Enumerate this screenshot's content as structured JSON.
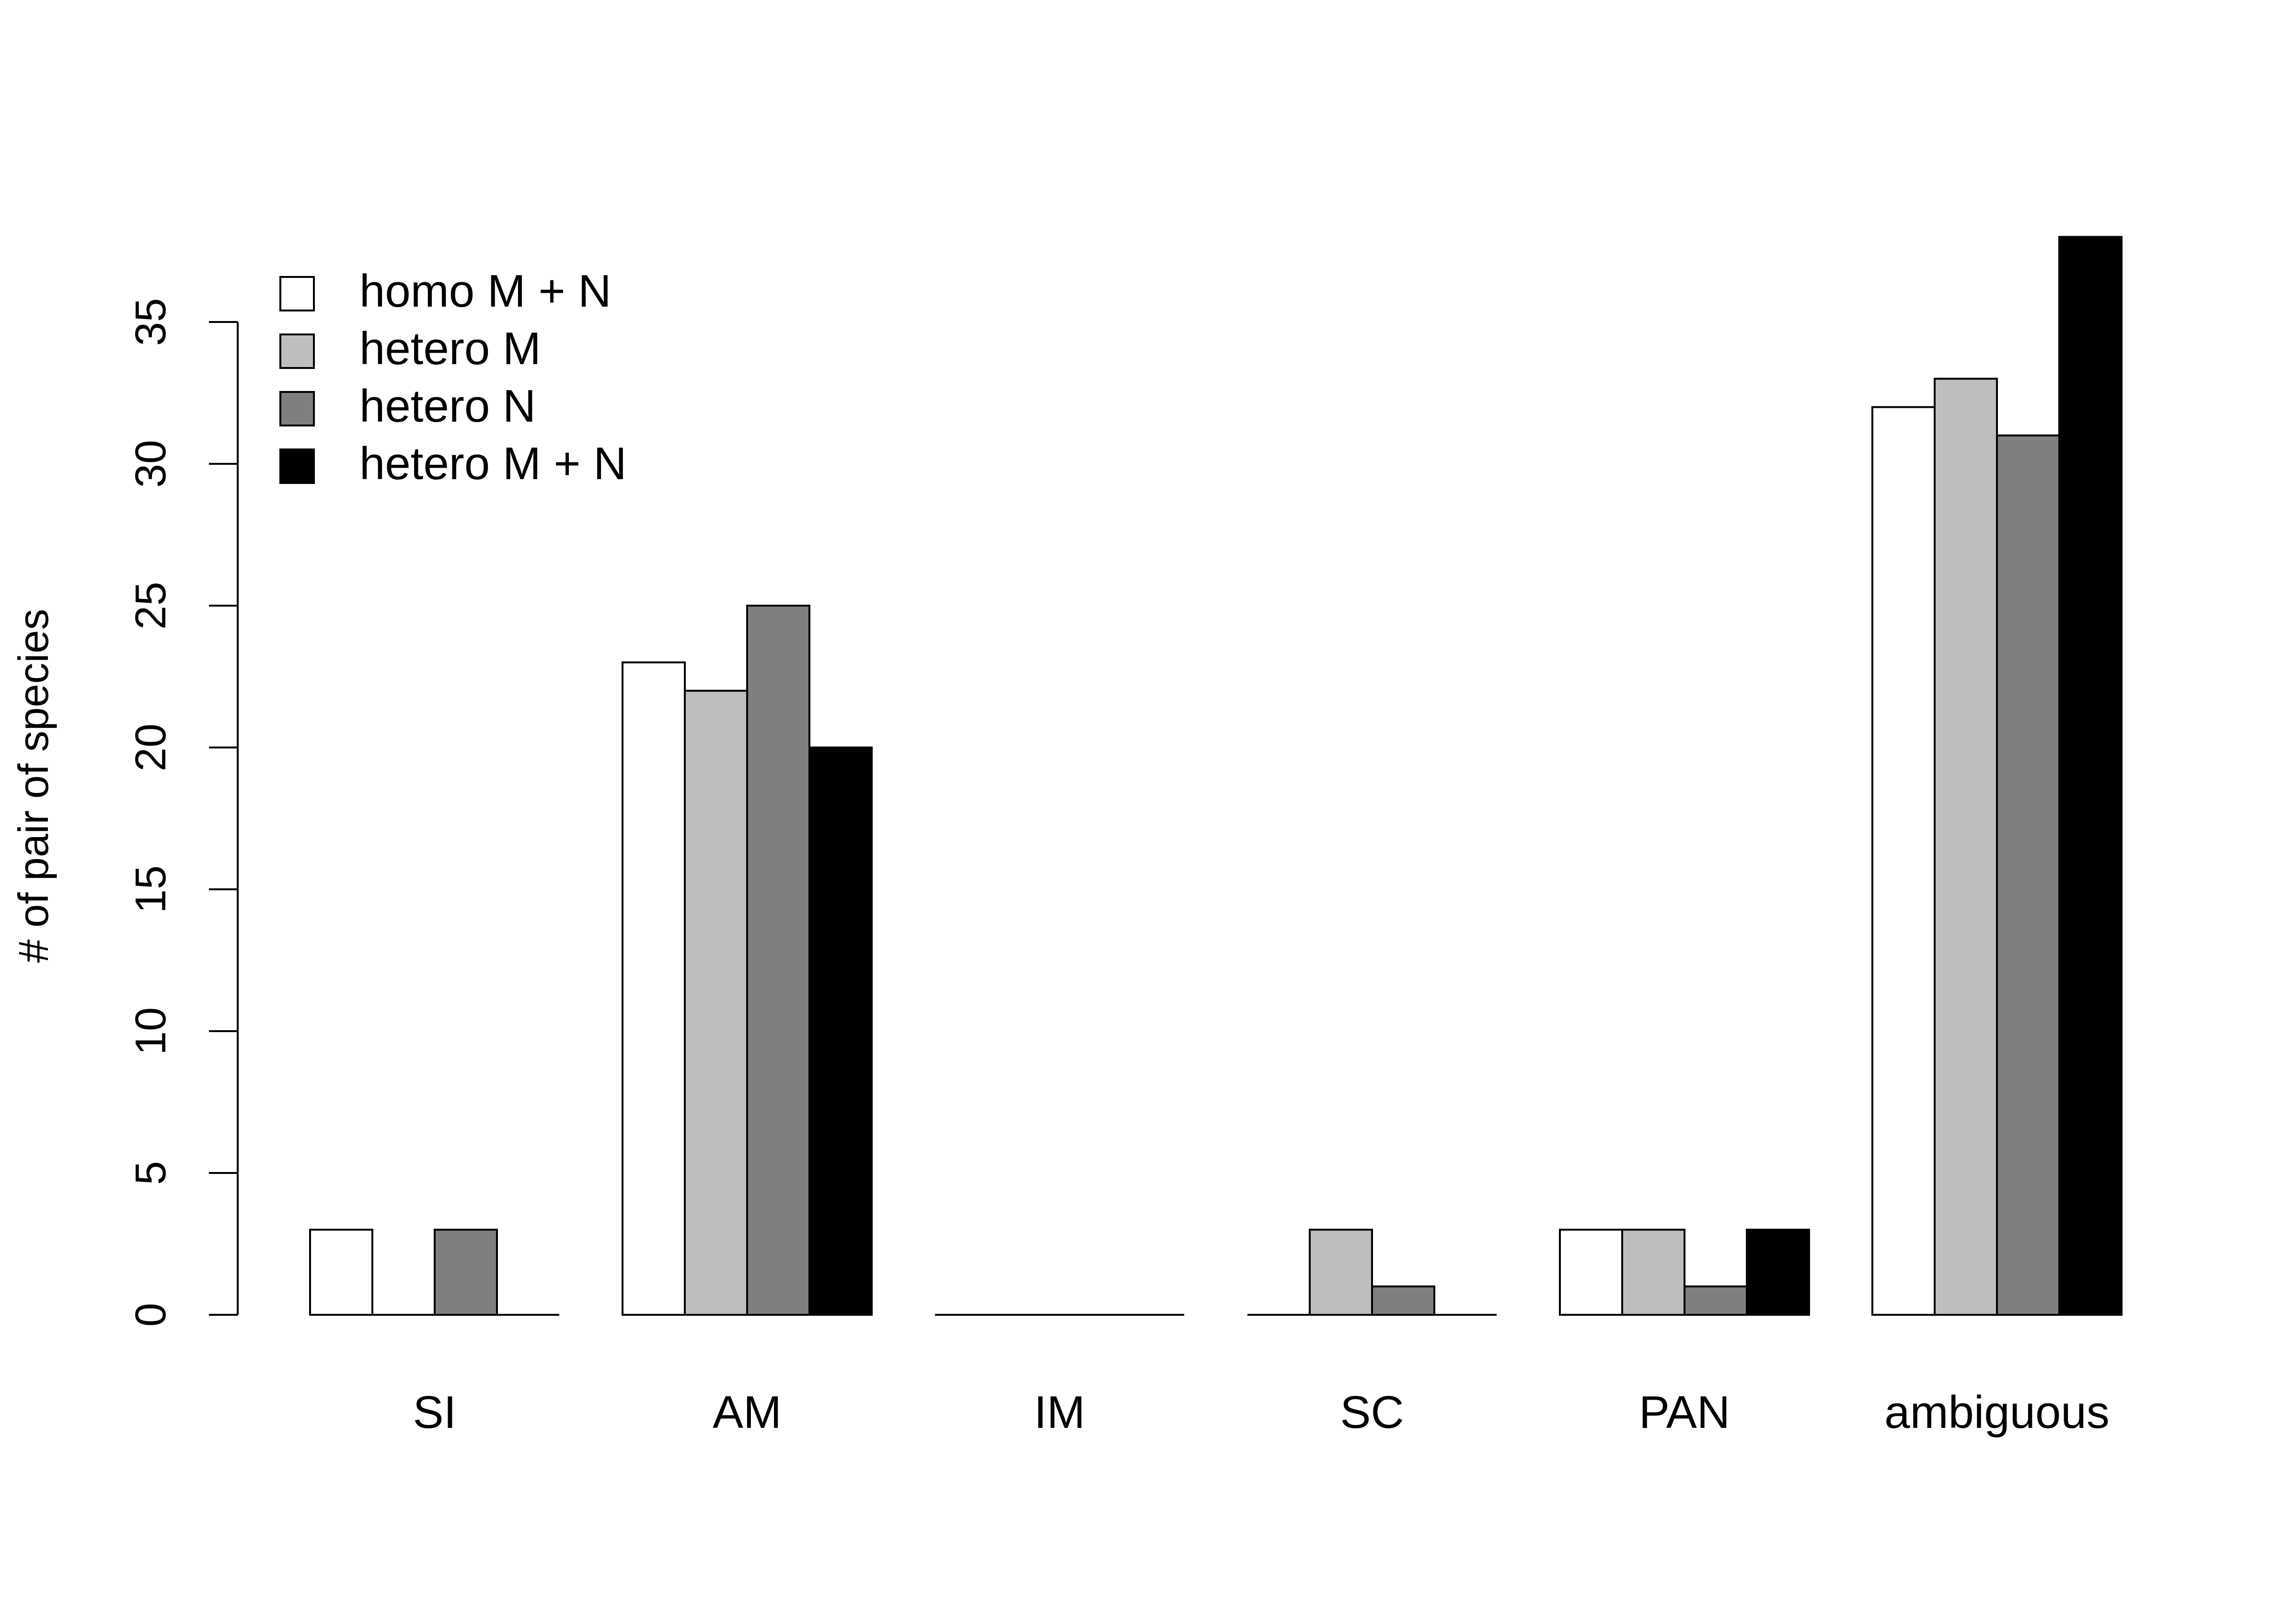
{
  "chart_data": {
    "type": "bar",
    "title": "",
    "xlabel": "",
    "ylabel": "# of pair of species",
    "categories": [
      "SI",
      "AM",
      "IM",
      "SC",
      "PAN",
      "ambiguous"
    ],
    "ylim": [
      0,
      38
    ],
    "yticks": [
      0,
      5,
      10,
      15,
      20,
      25,
      30,
      35
    ],
    "grid": false,
    "legend_position": "top-left",
    "series": [
      {
        "name": "homo M + N",
        "color": "#ffffff",
        "values": [
          3,
          23,
          0,
          0,
          3,
          32
        ]
      },
      {
        "name": "hetero M",
        "color": "#bebebe",
        "values": [
          0,
          22,
          0,
          3,
          3,
          33
        ]
      },
      {
        "name": "hetero N",
        "color": "#7f7f7f",
        "values": [
          3,
          25,
          0,
          1,
          1,
          31
        ]
      },
      {
        "name": "hetero M + N",
        "color": "#000000",
        "values": [
          0,
          20,
          0,
          0,
          3,
          38
        ]
      }
    ]
  }
}
